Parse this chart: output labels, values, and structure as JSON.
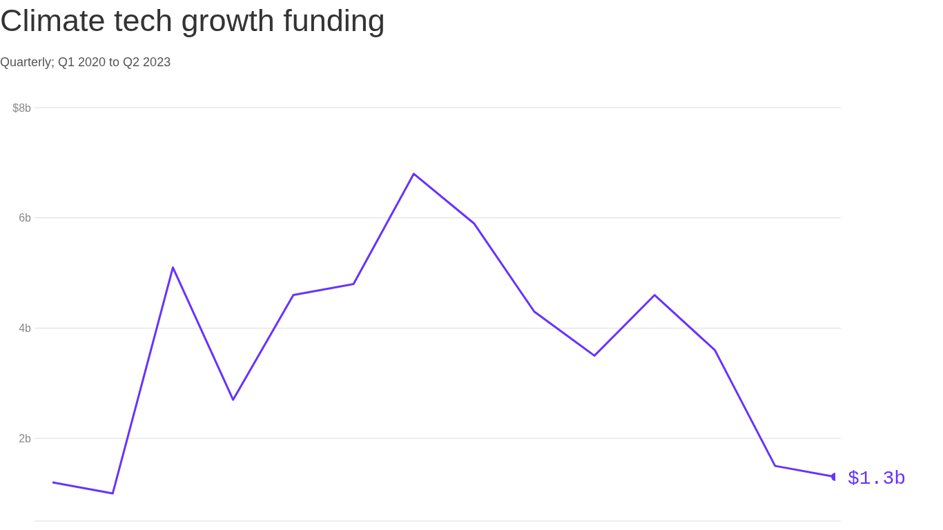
{
  "chart_data": {
    "type": "line",
    "title": "Climate tech growth funding",
    "subtitle": "Quarterly; Q1 2020 to Q2 2023",
    "categories": [
      null,
      null,
      null,
      null,
      null,
      null,
      null,
      null,
      null,
      null,
      null,
      null,
      null,
      null
    ],
    "values": [
      1.2,
      1.0,
      5.1,
      2.7,
      4.6,
      4.8,
      6.8,
      5.9,
      4.3,
      3.5,
      4.6,
      3.6,
      1.5,
      1.3
    ],
    "value_labels": [
      null,
      null,
      null,
      null,
      null,
      null,
      null,
      null,
      null,
      null,
      null,
      null,
      null,
      "$1.3b"
    ],
    "color": "#6533ff",
    "line_style": "solid",
    "ylim": [
      0.5,
      8
    ],
    "yticks": [
      {
        "value": 2,
        "label": "2b"
      },
      {
        "value": 4,
        "label": "4b"
      },
      {
        "value": 6,
        "label": "6b"
      },
      {
        "value": 8,
        "label": "$8b"
      }
    ],
    "grid": "y",
    "tick_labels": "y"
  }
}
